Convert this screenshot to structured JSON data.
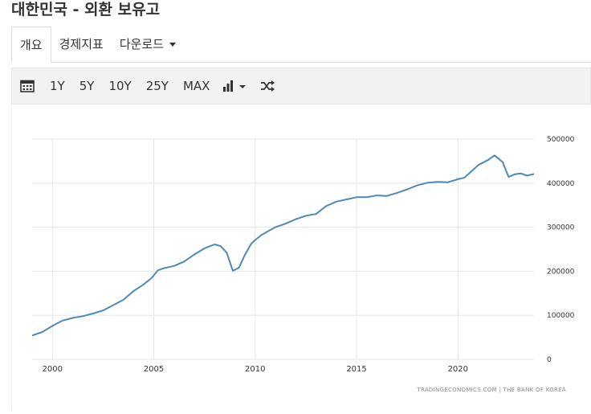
{
  "page": {
    "title": "대한민국 - 외환 보유고"
  },
  "tabs": [
    {
      "label": "개요",
      "active": true
    },
    {
      "label": "경제지표",
      "active": false
    },
    {
      "label": "다운로드",
      "active": false
    }
  ],
  "toolbar": {
    "calendar_icon": "calendar-icon",
    "ranges": [
      "1Y",
      "5Y",
      "10Y",
      "25Y",
      "MAX"
    ],
    "chart_type_icon": "bar-chart-icon",
    "compare_icon": "shuffle-icon"
  },
  "colors": {
    "line": "#4f8ab7",
    "grid": "#e6e6e6",
    "tick": "#333333",
    "source": "#888888"
  },
  "chart_data": {
    "type": "line",
    "title": "",
    "xlabel": "",
    "ylabel": "",
    "xlim": [
      1999.0,
      2023.75
    ],
    "ylim": [
      0,
      500000
    ],
    "x_ticks": [
      2000,
      2005,
      2010,
      2015,
      2020
    ],
    "x_tick_labels": [
      "2000",
      "2005",
      "2010",
      "2015",
      "2020"
    ],
    "y_ticks": [
      0,
      100000,
      200000,
      300000,
      400000,
      500000
    ],
    "y_tick_labels": [
      "0",
      "100000",
      "200000",
      "300000",
      "400000",
      "500000"
    ],
    "grid": true,
    "source": "TRADINGECONOMICS.COM  |  THE BANK OF KOREA",
    "series": [
      {
        "name": "",
        "x": [
          1999.0,
          1999.5,
          2000.0,
          2000.5,
          2001.0,
          2001.5,
          2002.0,
          2002.5,
          2003.0,
          2003.5,
          2004.0,
          2004.5,
          2004.9,
          2005.2,
          2005.5,
          2006.0,
          2006.5,
          2007.0,
          2007.5,
          2008.0,
          2008.3,
          2008.6,
          2008.9,
          2009.2,
          2009.5,
          2009.8,
          2010.0,
          2010.3,
          2010.6,
          2011.0,
          2011.5,
          2012.0,
          2012.5,
          2013.0,
          2013.5,
          2014.0,
          2014.5,
          2015.0,
          2015.5,
          2016.0,
          2016.5,
          2017.0,
          2017.5,
          2018.0,
          2018.5,
          2019.0,
          2019.5,
          2020.0,
          2020.3,
          2020.6,
          2021.0,
          2021.5,
          2021.8,
          2022.2,
          2022.5,
          2022.8,
          2023.1,
          2023.4,
          2023.75
        ],
        "values": [
          54000,
          62000,
          76000,
          88000,
          94000,
          98000,
          104000,
          111000,
          123000,
          135000,
          155000,
          170000,
          185000,
          202000,
          207000,
          212000,
          222000,
          238000,
          252000,
          261000,
          257000,
          242000,
          201000,
          208000,
          238000,
          262000,
          271000,
          282000,
          290000,
          300000,
          308000,
          318000,
          326000,
          330000,
          348000,
          358000,
          363000,
          368000,
          368000,
          372000,
          371000,
          378000,
          386000,
          395000,
          401000,
          403000,
          402000,
          409000,
          412000,
          424000,
          441000,
          453000,
          463000,
          448000,
          414000,
          420000,
          422000,
          417000,
          421000
        ]
      }
    ]
  }
}
